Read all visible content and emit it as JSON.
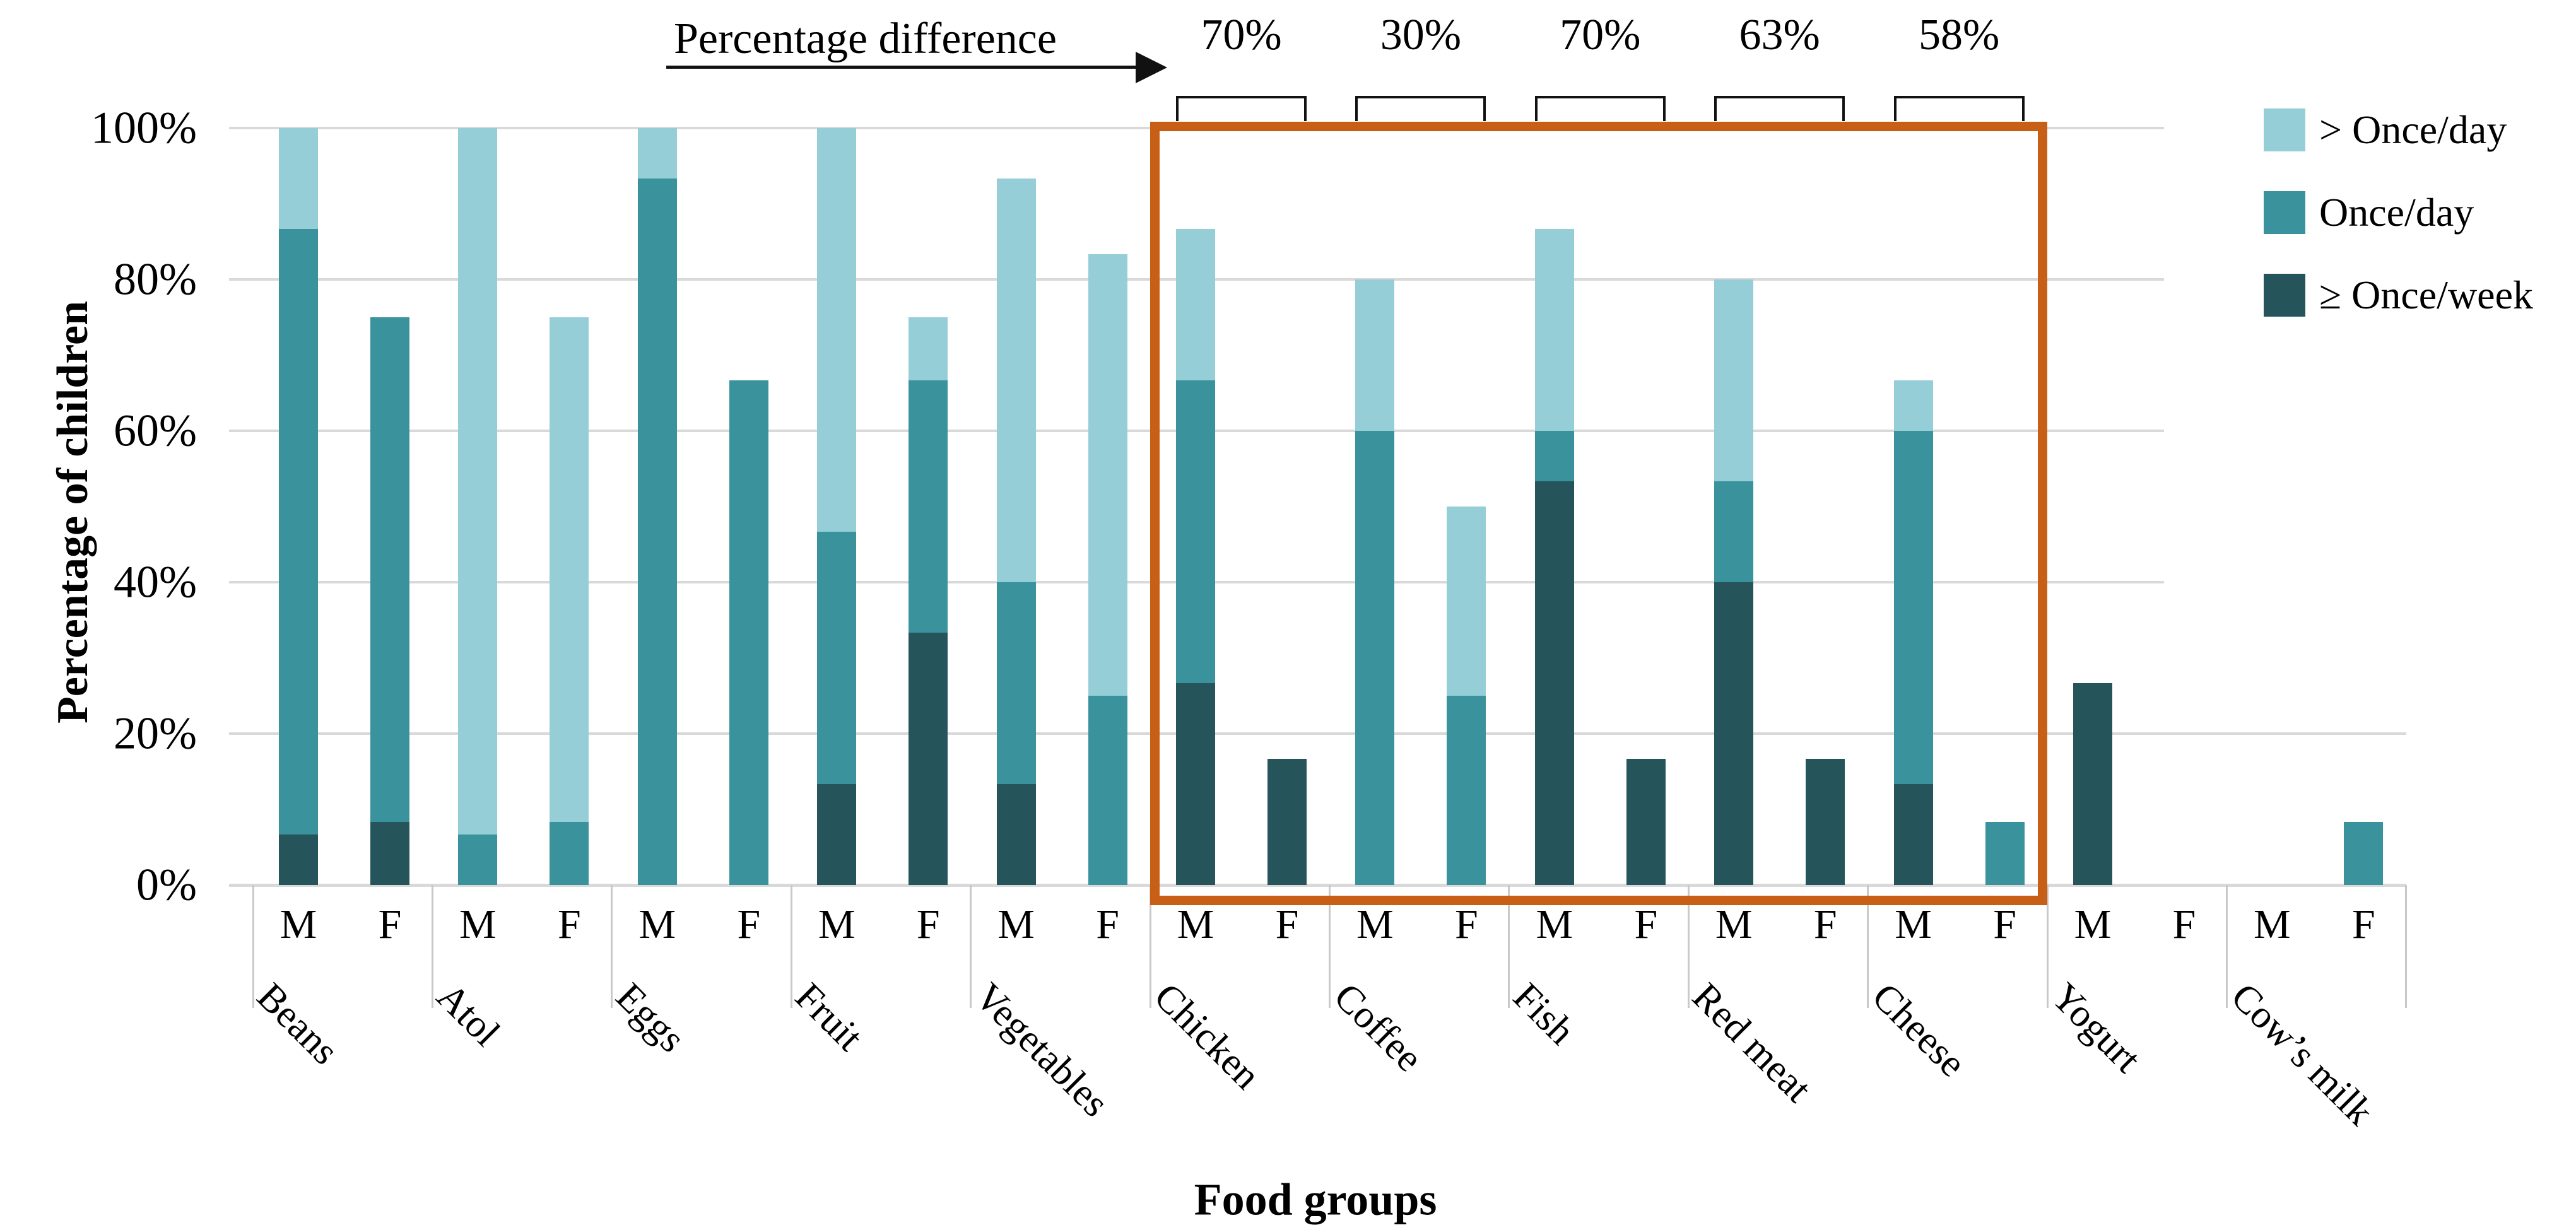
{
  "header": {
    "annotation_title": "Percentage difference"
  },
  "axes": {
    "y_title": "Percentage of children",
    "x_title": "Food groups"
  },
  "colors": {
    "more_than_once_day": "#96ced8",
    "once_day": "#39929c",
    "once_week_or_more": "#25545b",
    "highlight_box": "#c85f16",
    "gridline": "#d9d9d9",
    "separator": "#c9c9c9"
  },
  "chart_data": {
    "type": "bar",
    "stacked": true,
    "title": "Percentage difference",
    "xlabel": "Food groups",
    "ylabel": "Percentage of children",
    "ylim": [
      0,
      100
    ],
    "yticks": [
      {
        "value": 0,
        "label": "0%"
      },
      {
        "value": 20,
        "label": "20%"
      },
      {
        "value": 40,
        "label": "40%"
      },
      {
        "value": 60,
        "label": "60%"
      },
      {
        "value": 80,
        "label": "80%"
      },
      {
        "value": 100,
        "label": "100%"
      }
    ],
    "grid": true,
    "legend_position": "top-right",
    "legend": [
      {
        "label": "> Once/day",
        "series_key": "more_than_once_day",
        "color": "#96ced8"
      },
      {
        "label": "Once/day",
        "series_key": "once_day",
        "color": "#39929c"
      },
      {
        "label": "≥ Once/week",
        "series_key": "once_week_or_more",
        "color": "#25545b"
      }
    ],
    "sex_labels": [
      "M",
      "F"
    ],
    "categories": [
      "Beans",
      "Atol",
      "Eggs",
      "Fruit",
      "Vegetables",
      "Chicken",
      "Coffee",
      "Fish",
      "Red meat",
      "Cheese",
      "Yogurt",
      "Cow’s milk"
    ],
    "stack_order_bottom_to_top": [
      "once_week_or_more",
      "once_day",
      "more_than_once_day"
    ],
    "values": [
      {
        "category": "Beans",
        "M": {
          "once_week_or_more": 6.7,
          "once_day": 80.0,
          "more_than_once_day": 13.3
        },
        "F": {
          "once_week_or_more": 8.3,
          "once_day": 66.7,
          "more_than_once_day": 0
        }
      },
      {
        "category": "Atol",
        "M": {
          "once_week_or_more": 0,
          "once_day": 6.7,
          "more_than_once_day": 93.3
        },
        "F": {
          "once_week_or_more": 0,
          "once_day": 8.3,
          "more_than_once_day": 66.7
        }
      },
      {
        "category": "Eggs",
        "M": {
          "once_week_or_more": 0,
          "once_day": 93.3,
          "more_than_once_day": 6.7
        },
        "F": {
          "once_week_or_more": 0,
          "once_day": 66.7,
          "more_than_once_day": 0
        }
      },
      {
        "category": "Fruit",
        "M": {
          "once_week_or_more": 13.3,
          "once_day": 33.4,
          "more_than_once_day": 53.3
        },
        "F": {
          "once_week_or_more": 33.3,
          "once_day": 33.4,
          "more_than_once_day": 8.3
        }
      },
      {
        "category": "Vegetables",
        "M": {
          "once_week_or_more": 13.3,
          "once_day": 26.7,
          "more_than_once_day": 53.3
        },
        "F": {
          "once_week_or_more": 0,
          "once_day": 25.0,
          "more_than_once_day": 58.3
        }
      },
      {
        "category": "Chicken",
        "M": {
          "once_week_or_more": 26.7,
          "once_day": 40.0,
          "more_than_once_day": 20.0
        },
        "F": {
          "once_week_or_more": 16.7,
          "once_day": 0,
          "more_than_once_day": 0
        }
      },
      {
        "category": "Coffee",
        "M": {
          "once_week_or_more": 0,
          "once_day": 60.0,
          "more_than_once_day": 20.0
        },
        "F": {
          "once_week_or_more": 0,
          "once_day": 25.0,
          "more_than_once_day": 25.0
        }
      },
      {
        "category": "Fish",
        "M": {
          "once_week_or_more": 53.3,
          "once_day": 6.7,
          "more_than_once_day": 26.7
        },
        "F": {
          "once_week_or_more": 16.7,
          "once_day": 0,
          "more_than_once_day": 0
        }
      },
      {
        "category": "Red meat",
        "M": {
          "once_week_or_more": 40.0,
          "once_day": 13.3,
          "more_than_once_day": 26.7
        },
        "F": {
          "once_week_or_more": 16.7,
          "once_day": 0,
          "more_than_once_day": 0
        }
      },
      {
        "category": "Cheese",
        "M": {
          "once_week_or_more": 13.3,
          "once_day": 46.7,
          "more_than_once_day": 6.7
        },
        "F": {
          "once_week_or_more": 0,
          "once_day": 8.3,
          "more_than_once_day": 0
        }
      },
      {
        "category": "Yogurt",
        "M": {
          "once_week_or_more": 26.7,
          "once_day": 0,
          "more_than_once_day": 0
        },
        "F": {
          "once_week_or_more": 0,
          "once_day": 0,
          "more_than_once_day": 0
        }
      },
      {
        "category": "Cow’s milk",
        "M": {
          "once_week_or_more": 0,
          "once_day": 0,
          "more_than_once_day": 0
        },
        "F": {
          "once_week_or_more": 0,
          "once_day": 8.3,
          "more_than_once_day": 0
        }
      }
    ],
    "annotations": {
      "title": "Percentage difference",
      "highlighted_categories": [
        "Chicken",
        "Coffee",
        "Fish",
        "Red meat",
        "Cheese"
      ],
      "items": [
        {
          "category": "Chicken",
          "label": "70%"
        },
        {
          "category": "Coffee",
          "label": "30%"
        },
        {
          "category": "Fish",
          "label": "70%"
        },
        {
          "category": "Red meat",
          "label": "63%"
        },
        {
          "category": "Cheese",
          "label": "58%"
        }
      ]
    }
  }
}
